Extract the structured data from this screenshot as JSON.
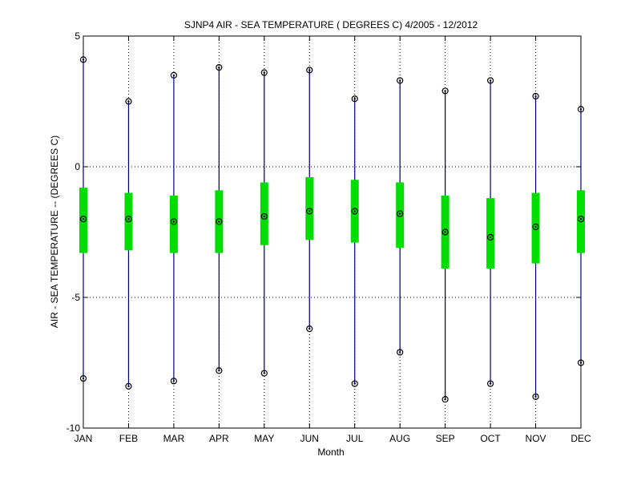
{
  "chart_data": {
    "type": "box",
    "title": "SJNP4  AIR - SEA TEMPERATURE ( DEGREES C) 4/2005 - 12/2012",
    "xlabel": "Month",
    "ylabel": "AIR - SEA TEMPERATURE -- (DEGREES C)",
    "ylim": [
      -10,
      5
    ],
    "yticks": [
      -10,
      -5,
      0,
      5
    ],
    "categories": [
      "JAN",
      "FEB",
      "MAR",
      "APR",
      "MAY",
      "JUN",
      "JUL",
      "AUG",
      "SEP",
      "OCT",
      "NOV",
      "DEC"
    ],
    "max": [
      4.1,
      2.5,
      3.5,
      3.8,
      3.6,
      3.7,
      2.6,
      3.3,
      2.9,
      3.3,
      2.7,
      2.2
    ],
    "q3": [
      -0.8,
      -1.0,
      -1.1,
      -0.9,
      -0.6,
      -0.4,
      -0.5,
      -0.6,
      -1.1,
      -1.2,
      -1.0,
      -0.9
    ],
    "median": [
      -2.0,
      -2.0,
      -2.1,
      -2.1,
      -1.9,
      -1.7,
      -1.7,
      -1.8,
      -2.5,
      -2.7,
      -2.3,
      -2.0
    ],
    "q1": [
      -3.3,
      -3.2,
      -3.3,
      -3.3,
      -3.0,
      -2.8,
      -2.9,
      -3.1,
      -3.9,
      -3.9,
      -3.7,
      -3.3
    ],
    "min": [
      -8.1,
      -8.4,
      -8.2,
      -7.8,
      -7.9,
      -6.2,
      -8.3,
      -7.1,
      -8.9,
      -8.3,
      -8.8,
      -7.5
    ],
    "grid": true,
    "colors": {
      "whisker": "#00008b",
      "box": "#00dd00",
      "marker": "#000000"
    }
  }
}
